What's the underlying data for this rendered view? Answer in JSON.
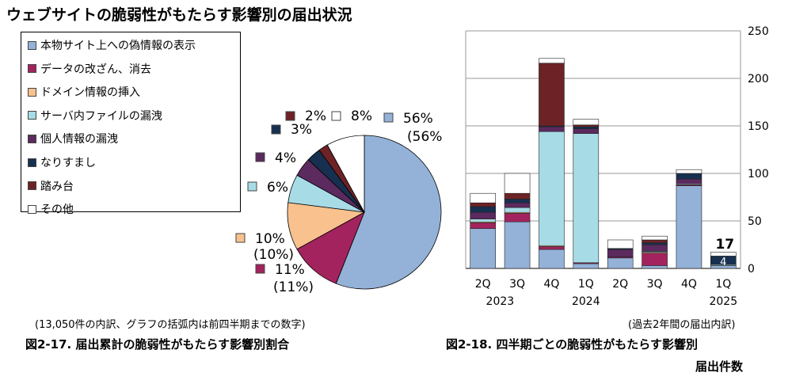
{
  "page_title": "ウェブサイトの脆弱性がもたらす影響別の届出状況",
  "chart_data": [
    {
      "type": "pie",
      "caption": "図2-17. 届出累計の脆弱性がもたらす影響別割合",
      "note": "(13,050件の内訳、グラフの括弧内は前四半期までの数字)",
      "slices": [
        {
          "name": "本物サイト上への偽情報の表示",
          "value": 56,
          "label": "56%",
          "prev_label": "(56%)",
          "color": "#94B2D8"
        },
        {
          "name": "データの改ざん、消去",
          "value": 11,
          "label": "11%",
          "prev_label": "(11%)",
          "color": "#A3235E"
        },
        {
          "name": "ドメイン情報の挿入",
          "value": 10,
          "label": "10%",
          "prev_label": "(10%)",
          "color": "#F8C18E"
        },
        {
          "name": "サーバ内ファイルの漏洩",
          "value": 6,
          "label": "6%",
          "prev_label": "",
          "color": "#A7DCE6"
        },
        {
          "name": "個人情報の漏洩",
          "value": 4,
          "label": "4%",
          "prev_label": "",
          "color": "#5B2A5E"
        },
        {
          "name": "なりすまし",
          "value": 3,
          "label": "3%",
          "prev_label": "",
          "color": "#17304F"
        },
        {
          "name": "踏み台",
          "value": 2,
          "label": "2%",
          "prev_label": "",
          "color": "#6D2326"
        },
        {
          "name": "その他",
          "value": 8,
          "label": "8%",
          "prev_label": "",
          "color": "#FFFFFF"
        }
      ]
    },
    {
      "type": "bar",
      "stacked": true,
      "caption_line1": "図2-18. 四半期ごとの脆弱性がもたらす影響別",
      "caption_line2": "届出件数",
      "note": "(過去2年間の届出内訳)",
      "categories": [
        "2Q",
        "3Q",
        "4Q",
        "1Q",
        "2Q",
        "3Q",
        "4Q",
        "1Q"
      ],
      "year_labels": [
        {
          "text": "2023",
          "index": 0.5
        },
        {
          "text": "2024",
          "index": 3
        },
        {
          "text": "2025",
          "index": 7
        }
      ],
      "ylim": [
        0,
        250
      ],
      "yticks": [
        "0",
        "50",
        "100",
        "150",
        "200",
        "250"
      ],
      "grid": true,
      "series": [
        {
          "name": "本物サイト上への偽情報の表示",
          "color": "#94B2D8",
          "values": [
            42,
            49,
            20,
            5,
            11,
            3,
            87,
            3
          ]
        },
        {
          "name": "データの改ざん、消去",
          "color": "#A3235E",
          "values": [
            6,
            9,
            3,
            1,
            1,
            13,
            1,
            0
          ]
        },
        {
          "name": "ドメイン情報の挿入",
          "color": "#F8C18E",
          "values": [
            1,
            1,
            1,
            0,
            0,
            1,
            0,
            0
          ]
        },
        {
          "name": "サーバ内ファイルの漏洩",
          "color": "#A7DCE6",
          "values": [
            3,
            5,
            120,
            136,
            0,
            1,
            1,
            1
          ]
        },
        {
          "name": "個人情報の漏洩",
          "color": "#5B2A5E",
          "values": [
            7,
            5,
            5,
            5,
            8,
            7,
            5,
            0
          ]
        },
        {
          "name": "なりすまし",
          "color": "#17304F",
          "values": [
            6,
            4,
            1,
            2,
            1,
            2,
            6,
            9
          ]
        },
        {
          "name": "踏み台",
          "color": "#6D2326",
          "values": [
            4,
            6,
            66,
            2,
            0,
            3,
            0,
            0
          ]
        },
        {
          "name": "その他",
          "color": "#FFFFFF",
          "values": [
            10,
            21,
            5,
            6,
            9,
            4,
            4,
            4
          ]
        }
      ],
      "annotations": [
        {
          "text": "17",
          "index": 7
        },
        {
          "text": "4",
          "index": 7
        }
      ]
    }
  ]
}
